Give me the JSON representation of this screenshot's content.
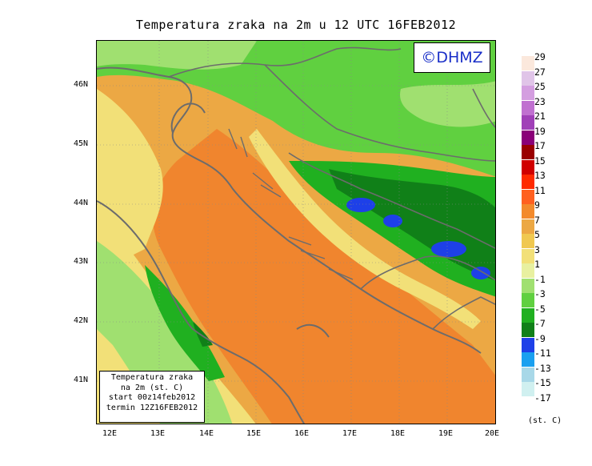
{
  "title": "Temperatura zraka na 2m u 12 UTC 16FEB2012",
  "brand": "©DHMZ",
  "info_box": {
    "line1": "Temperatura zraka",
    "line2": "na 2m (st. C)",
    "line3": "start 00z14feb2012",
    "line4": "termin 12Z16FEB2012"
  },
  "y_ticks": [
    "46N",
    "45N",
    "44N",
    "43N",
    "42N",
    "41N"
  ],
  "x_ticks": [
    "12E",
    "13E",
    "14E",
    "15E",
    "16E",
    "17E",
    "18E",
    "19E",
    "20E"
  ],
  "legend": {
    "labels": [
      "29",
      "27",
      "25",
      "23",
      "21",
      "19",
      "17",
      "15",
      "13",
      "11",
      "9",
      "7",
      "5",
      "3",
      "1",
      "-1",
      "-3",
      "-5",
      "-7",
      "-9",
      "-11",
      "-13",
      "-15",
      "-17"
    ],
    "colors": [
      "#fbe8dc",
      "#e0c4e8",
      "#d49ee0",
      "#c070d0",
      "#a040b8",
      "#8a0078",
      "#9a0000",
      "#d00000",
      "#ff2a00",
      "#ff6020",
      "#f38a2c",
      "#eca844",
      "#f0c850",
      "#f2e078",
      "#e8f0a0",
      "#a0e070",
      "#60d040",
      "#20b020",
      "#108018",
      "#1e40e8",
      "#1aa0f0",
      "#a8d8e8",
      "#d0f0f0"
    ],
    "unit": "(st. C)"
  },
  "colors": {
    "sea_warm": "#f0852e",
    "sea_mid": "#eca844",
    "coast_light": "#f2e078",
    "land_light_green": "#a0e070",
    "land_green": "#60d040",
    "land_dark_green": "#108018",
    "cold_blue": "#1e40e8",
    "border": "#6c6c6c"
  }
}
